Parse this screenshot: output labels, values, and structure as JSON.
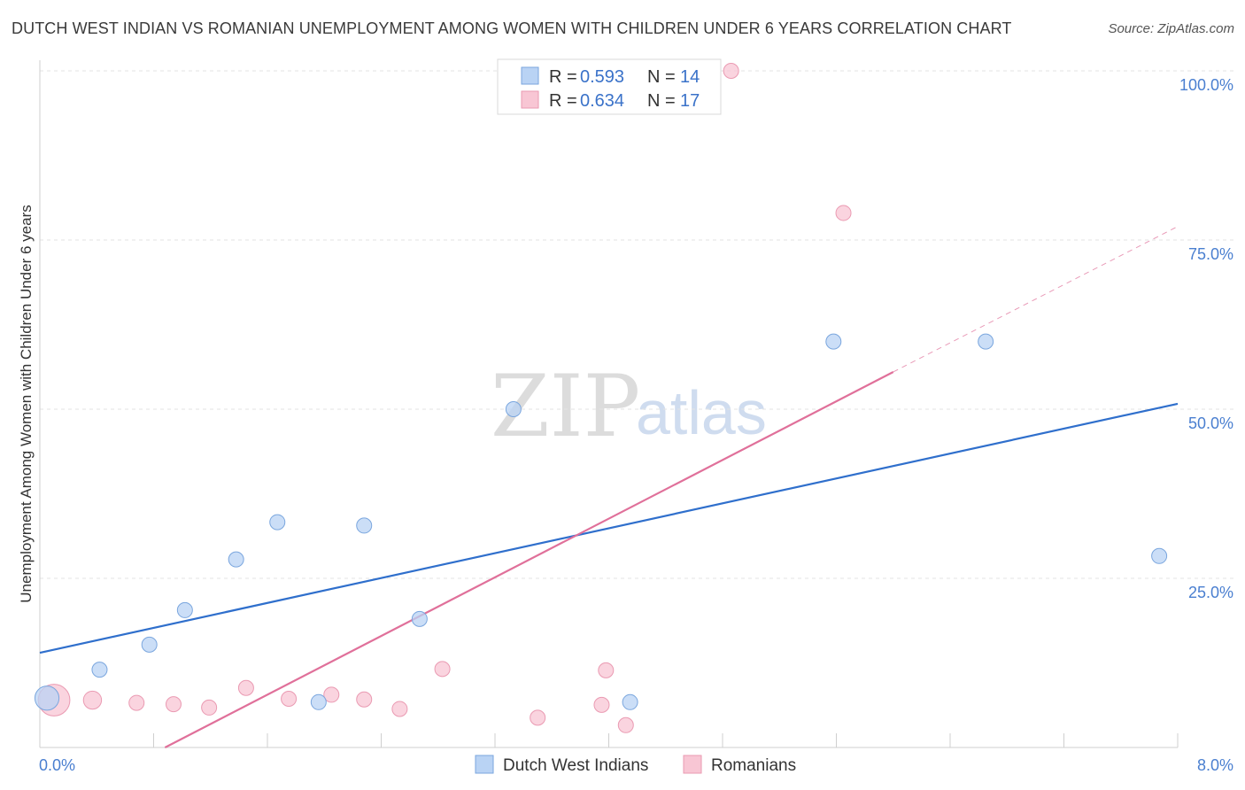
{
  "title": "DUTCH WEST INDIAN VS ROMANIAN UNEMPLOYMENT AMONG WOMEN WITH CHILDREN UNDER 6 YEARS CORRELATION CHART",
  "source": "Source: ZipAtlas.com",
  "watermark": {
    "zip": "ZIP",
    "atlas": "atlas"
  },
  "colors": {
    "blue_fill": "#b9d3f4",
    "blue_stroke": "#7aa6de",
    "blue_line": "#2f6fcc",
    "pink_fill": "#f8c6d4",
    "pink_stroke": "#ea9ab2",
    "pink_line": "#e0709a",
    "grid": "#e3e3e3",
    "tick_text": "#4a7fd0"
  },
  "chart_data": {
    "type": "scatter",
    "title": "DUTCH WEST INDIAN VS ROMANIAN UNEMPLOYMENT AMONG WOMEN WITH CHILDREN UNDER 6 YEARS CORRELATION CHART",
    "xlabel": "",
    "ylabel": "Unemployment Among Women with Children Under 6 years",
    "xlim": [
      0,
      8
    ],
    "ylim": [
      0,
      100
    ],
    "x_tick_labels": [
      "0.0%",
      "8.0%"
    ],
    "y_ticks": [
      25,
      50,
      75,
      100
    ],
    "y_tick_labels": [
      "25.0%",
      "50.0%",
      "75.0%",
      "100.0%"
    ],
    "grid": true,
    "legend": {
      "placement": "top-center",
      "entries": [
        {
          "r_label": "R =",
          "r_value": "0.593",
          "n_label": "N =",
          "n_value": "14"
        },
        {
          "r_label": "R =",
          "r_value": "0.634",
          "n_label": "N =",
          "n_value": "17"
        }
      ]
    },
    "series": [
      {
        "name": "Dutch West Indians",
        "color": "blue",
        "points": [
          {
            "x": 0.05,
            "y": 7.3,
            "size": 1.6
          },
          {
            "x": 0.42,
            "y": 11.5,
            "size": 1.0
          },
          {
            "x": 0.77,
            "y": 15.2,
            "size": 1.0
          },
          {
            "x": 1.02,
            "y": 20.3,
            "size": 1.0
          },
          {
            "x": 1.38,
            "y": 27.8,
            "size": 1.0
          },
          {
            "x": 1.67,
            "y": 33.3,
            "size": 1.0
          },
          {
            "x": 1.96,
            "y": 6.7,
            "size": 1.0
          },
          {
            "x": 2.28,
            "y": 32.8,
            "size": 1.0
          },
          {
            "x": 2.67,
            "y": 19.0,
            "size": 1.0
          },
          {
            "x": 3.33,
            "y": 50.0,
            "size": 1.0
          },
          {
            "x": 4.15,
            "y": 6.7,
            "size": 1.0
          },
          {
            "x": 5.58,
            "y": 60.0,
            "size": 1.0
          },
          {
            "x": 6.65,
            "y": 60.0,
            "size": 1.0
          },
          {
            "x": 7.87,
            "y": 28.3,
            "size": 1.0
          }
        ],
        "trend": {
          "x0": 0.0,
          "y0": 14.0,
          "x1": 8.0,
          "y1": 50.8,
          "dashed_to": null
        }
      },
      {
        "name": "Romanians",
        "color": "pink",
        "points": [
          {
            "x": 0.1,
            "y": 7.0,
            "size": 2.1
          },
          {
            "x": 0.37,
            "y": 7.0,
            "size": 1.2
          },
          {
            "x": 0.68,
            "y": 6.6,
            "size": 1.0
          },
          {
            "x": 0.94,
            "y": 6.4,
            "size": 1.0
          },
          {
            "x": 1.19,
            "y": 5.9,
            "size": 1.0
          },
          {
            "x": 1.45,
            "y": 8.8,
            "size": 1.0
          },
          {
            "x": 1.75,
            "y": 7.2,
            "size": 1.0
          },
          {
            "x": 2.05,
            "y": 7.8,
            "size": 1.0
          },
          {
            "x": 2.28,
            "y": 7.1,
            "size": 1.0
          },
          {
            "x": 2.53,
            "y": 5.7,
            "size": 1.0
          },
          {
            "x": 2.83,
            "y": 11.6,
            "size": 1.0
          },
          {
            "x": 3.5,
            "y": 4.4,
            "size": 1.0
          },
          {
            "x": 3.95,
            "y": 6.3,
            "size": 1.0
          },
          {
            "x": 3.98,
            "y": 11.4,
            "size": 1.0
          },
          {
            "x": 4.12,
            "y": 3.3,
            "size": 1.0
          },
          {
            "x": 4.86,
            "y": 100.0,
            "size": 1.0
          },
          {
            "x": 5.65,
            "y": 79.0,
            "size": 1.0
          }
        ],
        "trend": {
          "x0": 0.88,
          "y0": 0.0,
          "x1": 6.0,
          "y1": 55.5,
          "dashed_to": {
            "x": 8.0,
            "y": 77.0
          }
        }
      }
    ]
  }
}
